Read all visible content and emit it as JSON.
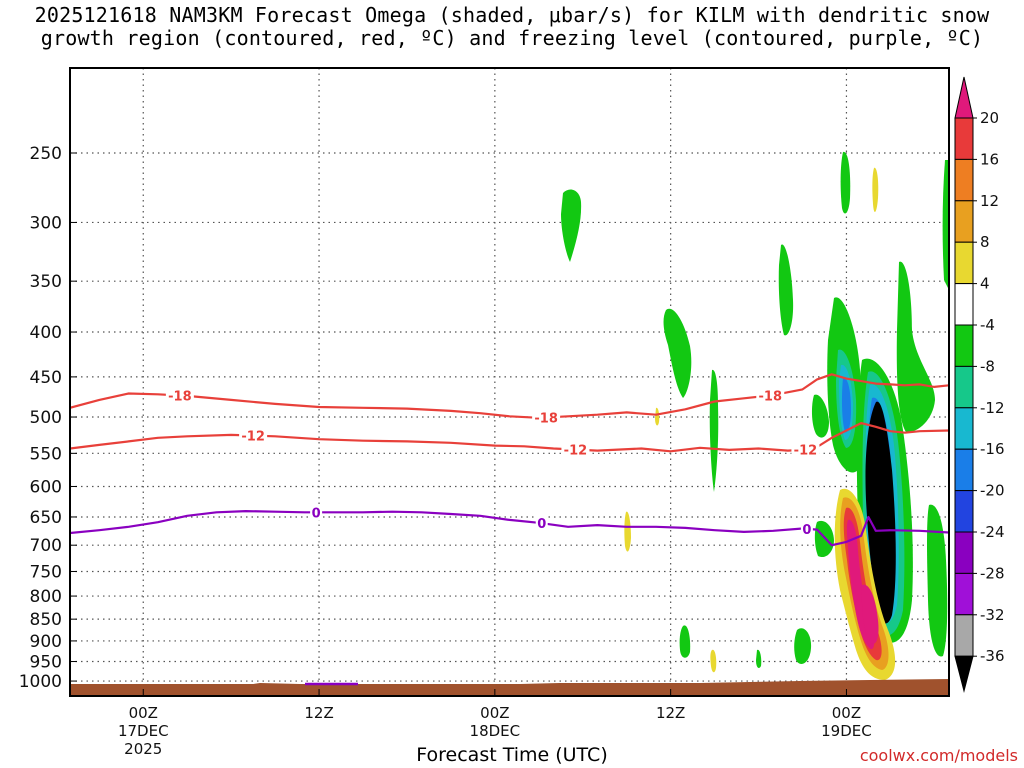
{
  "title": {
    "line1": "2025121618 NAM3KM Forecast Omega (shaded, μbar/s) for KILM with dendritic snow",
    "line2": "growth region (contoured, red, ºC) and freezing level (contoured, purple, ºC)"
  },
  "credit": "coolwx.com/models",
  "colors": {
    "dgz": "#e8403a",
    "freezing": "#8a00c0",
    "terrain": "#a0522d",
    "grid": "#555555"
  },
  "chart_data": {
    "type": "heatmap",
    "xlabel": "Forecast Time (UTC)",
    "ylabel": "",
    "y_scale": "log-pressure (inverted)",
    "ylim_hPa": [
      200,
      1040
    ],
    "xlim_hours": [
      -5,
      55
    ],
    "y_ticks": [
      250,
      300,
      350,
      400,
      450,
      500,
      550,
      600,
      650,
      700,
      750,
      800,
      850,
      900,
      950,
      1000
    ],
    "x_ticks": [
      {
        "hour": 0,
        "label": "00Z",
        "label2": "17DEC",
        "label3": "2025"
      },
      {
        "hour": 12,
        "label": "12Z",
        "label2": "",
        "label3": ""
      },
      {
        "hour": 24,
        "label": "00Z",
        "label2": "18DEC",
        "label3": ""
      },
      {
        "hour": 36,
        "label": "12Z",
        "label2": "",
        "label3": ""
      },
      {
        "hour": 48,
        "label": "00Z",
        "label2": "19DEC",
        "label3": ""
      }
    ],
    "grid": true,
    "colorbar": {
      "labels": [
        "20",
        "16",
        "12",
        "8",
        "4",
        "-4",
        "-8",
        "-12",
        "-16",
        "-20",
        "-24",
        "-28",
        "-32",
        "-36"
      ],
      "colors": [
        "#e0197b",
        "#e83a3a",
        "#ee7e22",
        "#e8a020",
        "#e8d830",
        "#ffffff",
        "#12c812",
        "#16c88a",
        "#18b8d0",
        "#1a7ee8",
        "#2244e0",
        "#8a00c0",
        "#a010d8",
        "#a8a8a8",
        "#000000"
      ]
    },
    "series": [
      {
        "name": "-18",
        "color": "#e8403a",
        "points": [
          [
            -5,
            488
          ],
          [
            -3,
            478
          ],
          [
            -1,
            470
          ],
          [
            1,
            471
          ],
          [
            3,
            473
          ],
          [
            6,
            478
          ],
          [
            9,
            483
          ],
          [
            12,
            487
          ],
          [
            15,
            488
          ],
          [
            18,
            489
          ],
          [
            21,
            492
          ],
          [
            23,
            495
          ],
          [
            25,
            499
          ],
          [
            27,
            501
          ],
          [
            29,
            499
          ],
          [
            31,
            497
          ],
          [
            33,
            494
          ],
          [
            35,
            497
          ],
          [
            37,
            490
          ],
          [
            39,
            480
          ],
          [
            41,
            476
          ],
          [
            43,
            472
          ],
          [
            45,
            465
          ],
          [
            46,
            453
          ],
          [
            47,
            447
          ],
          [
            48,
            452
          ],
          [
            49,
            455
          ],
          [
            50,
            458
          ],
          [
            51,
            459
          ],
          [
            52,
            460
          ],
          [
            53,
            459
          ],
          [
            54,
            462
          ],
          [
            55,
            460
          ]
        ],
        "labels": [
          {
            "hour": 2.5,
            "text": "-18"
          },
          {
            "hour": 27.5,
            "text": "-18"
          },
          {
            "hour": 42.8,
            "text": "-18"
          }
        ]
      },
      {
        "name": "-12",
        "color": "#e8403a",
        "points": [
          [
            -5,
            543
          ],
          [
            -3,
            538
          ],
          [
            -1,
            533
          ],
          [
            1,
            528
          ],
          [
            3,
            526
          ],
          [
            6,
            524
          ],
          [
            9,
            526
          ],
          [
            12,
            530
          ],
          [
            15,
            532
          ],
          [
            18,
            533
          ],
          [
            21,
            535
          ],
          [
            24,
            539
          ],
          [
            26,
            540
          ],
          [
            28,
            543
          ],
          [
            31,
            546
          ],
          [
            34,
            543
          ],
          [
            36,
            547
          ],
          [
            38,
            542
          ],
          [
            40,
            545
          ],
          [
            42,
            543
          ],
          [
            44,
            546
          ],
          [
            45,
            545
          ],
          [
            46,
            541
          ],
          [
            47,
            528
          ],
          [
            48,
            518
          ],
          [
            49,
            508
          ],
          [
            50,
            513
          ],
          [
            51,
            519
          ],
          [
            52,
            521
          ],
          [
            53,
            519
          ],
          [
            55,
            518
          ]
        ],
        "labels": [
          {
            "hour": 7.5,
            "text": "-12"
          },
          {
            "hour": 29.5,
            "text": "-12"
          },
          {
            "hour": 45.2,
            "text": "-12"
          }
        ]
      },
      {
        "name": "0",
        "color": "#8a00c0",
        "points": [
          [
            -5,
            678
          ],
          [
            -3,
            673
          ],
          [
            -1,
            667
          ],
          [
            1,
            659
          ],
          [
            3,
            648
          ],
          [
            5,
            642
          ],
          [
            7,
            640
          ],
          [
            9,
            641
          ],
          [
            11,
            642
          ],
          [
            13,
            642
          ],
          [
            15,
            642
          ],
          [
            17,
            641
          ],
          [
            19,
            642
          ],
          [
            21,
            645
          ],
          [
            23,
            648
          ],
          [
            25,
            655
          ],
          [
            27,
            660
          ],
          [
            29,
            667
          ],
          [
            31,
            664
          ],
          [
            33,
            667
          ],
          [
            35,
            667
          ],
          [
            37,
            669
          ],
          [
            39,
            673
          ],
          [
            41,
            676
          ],
          [
            43,
            674
          ],
          [
            45,
            670
          ],
          [
            46,
            672
          ],
          [
            47,
            700
          ],
          [
            48,
            694
          ],
          [
            49,
            683
          ],
          [
            49.5,
            650
          ],
          [
            50,
            674
          ],
          [
            51,
            673
          ],
          [
            53,
            674
          ],
          [
            55,
            677
          ]
        ],
        "labels": [
          {
            "hour": 11.8,
            "text": "0"
          },
          {
            "hour": 27.2,
            "text": "0"
          },
          {
            "hour": 45.3,
            "text": "0"
          }
        ]
      }
    ]
  }
}
